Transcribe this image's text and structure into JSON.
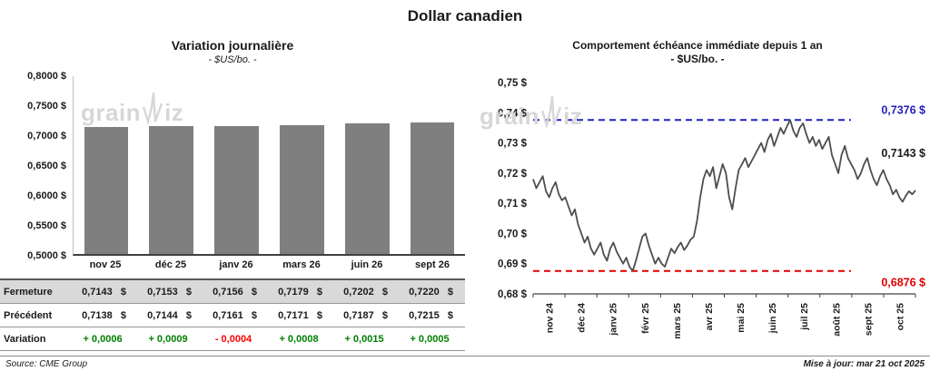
{
  "page_title": "Dollar canadien",
  "watermark": {
    "prefix": "grain",
    "suffix": "iz"
  },
  "colors": {
    "bar": "#7f7f7f",
    "line": "#4d4d4d",
    "high": "#2020c0",
    "low": "#e00000",
    "positive": "#008000",
    "negative": "#ff0000",
    "table_shade": "#d9d9d9"
  },
  "chart_data": [
    {
      "type": "bar",
      "title": "Variation  journalière",
      "subtitle": "- $US/bo. -",
      "categories": [
        "nov 25",
        "déc 25",
        "janv 26",
        "mars 26",
        "juin 26",
        "sept 26"
      ],
      "values": [
        0.7143,
        0.7153,
        0.7156,
        0.7179,
        0.7202,
        0.722
      ],
      "ylim": [
        0.5,
        0.8
      ],
      "yticks": [
        "0,8000 $",
        "0,7500 $",
        "0,7000 $",
        "0,6500 $",
        "0,6000 $",
        "0,5500 $",
        "0,5000 $"
      ],
      "grid": false,
      "legend": false
    },
    {
      "type": "line",
      "title": "Comportement échéance immédiate depuis 1 an",
      "subtitle": "- $US/bo. -",
      "x": [
        "nov 24",
        "déc 24",
        "janv 25",
        "févr 25",
        "mars 25",
        "avr 25",
        "mai 25",
        "juin 25",
        "juil 25",
        "août 25",
        "sept 25",
        "oct 25"
      ],
      "ylim": [
        0.68,
        0.75
      ],
      "yticks": [
        "0,75 $",
        "0,74 $",
        "0,73 $",
        "0,72 $",
        "0,71 $",
        "0,70 $",
        "0,69 $",
        "0,68 $"
      ],
      "high_line": {
        "value": 0.7376,
        "label": "0,7376 $"
      },
      "low_line": {
        "value": 0.6876,
        "label": "0,6876 $"
      },
      "last_value": 0.7143,
      "last_label": "0,7143 $",
      "grid": false,
      "legend": false,
      "series": [
        {
          "name": "échéance immédiate",
          "values": [
            0.718,
            0.715,
            0.717,
            0.719,
            0.714,
            0.712,
            0.715,
            0.717,
            0.713,
            0.711,
            0.712,
            0.709,
            0.706,
            0.708,
            0.703,
            0.7,
            0.697,
            0.699,
            0.695,
            0.693,
            0.695,
            0.697,
            0.693,
            0.691,
            0.695,
            0.697,
            0.694,
            0.692,
            0.69,
            0.692,
            0.689,
            0.6876,
            0.691,
            0.695,
            0.699,
            0.7,
            0.696,
            0.693,
            0.69,
            0.692,
            0.69,
            0.689,
            0.692,
            0.695,
            0.6935,
            0.6955,
            0.697,
            0.6945,
            0.696,
            0.698,
            0.699,
            0.704,
            0.712,
            0.718,
            0.721,
            0.719,
            0.722,
            0.715,
            0.719,
            0.723,
            0.72,
            0.712,
            0.708,
            0.715,
            0.721,
            0.723,
            0.725,
            0.722,
            0.724,
            0.726,
            0.728,
            0.73,
            0.727,
            0.731,
            0.733,
            0.729,
            0.732,
            0.735,
            0.733,
            0.7355,
            0.7376,
            0.734,
            0.732,
            0.735,
            0.7365,
            0.733,
            0.73,
            0.732,
            0.729,
            0.731,
            0.728,
            0.73,
            0.732,
            0.726,
            0.723,
            0.72,
            0.726,
            0.729,
            0.725,
            0.723,
            0.721,
            0.718,
            0.72,
            0.723,
            0.725,
            0.721,
            0.718,
            0.716,
            0.719,
            0.721,
            0.718,
            0.716,
            0.713,
            0.7145,
            0.712,
            0.7105,
            0.7125,
            0.714,
            0.713,
            0.7143
          ]
        }
      ]
    }
  ],
  "table": {
    "rows": [
      {
        "label": "Fermeture",
        "cells": [
          "0,7143   $",
          "0,7153   $",
          "0,7156   $",
          "0,7179   $",
          "0,7202   $",
          "0,7220   $"
        ]
      },
      {
        "label": "Précédent",
        "cells": [
          "0,7138   $",
          "0,7144   $",
          "0,7161   $",
          "0,7171   $",
          "0,7187   $",
          "0,7215   $"
        ]
      },
      {
        "label": "Variation",
        "cells": [
          "+ 0,0006",
          "+ 0,0009",
          "- 0,0004",
          "+ 0,0008",
          "+ 0,0015",
          "+ 0,0005"
        ]
      }
    ]
  },
  "footer": {
    "source": "Source: CME Group",
    "updated": "Mise à jour: mar 21 oct 2025"
  }
}
